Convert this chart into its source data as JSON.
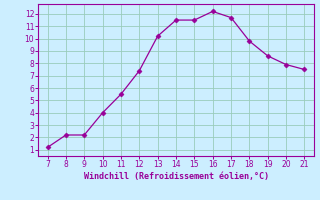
{
  "x": [
    7,
    8,
    9,
    10,
    11,
    12,
    13,
    14,
    15,
    16,
    17,
    18,
    19,
    20,
    21
  ],
  "y": [
    1.2,
    2.2,
    2.2,
    4.0,
    5.5,
    7.4,
    10.2,
    11.5,
    11.5,
    12.2,
    11.7,
    9.8,
    8.6,
    7.9,
    7.5
  ],
  "line_color": "#990099",
  "marker": "D",
  "marker_size": 2.5,
  "bg_color": "#cceeff",
  "grid_color": "#99ccbb",
  "xlabel": "Windchill (Refroidissement éolien,°C)",
  "xlabel_color": "#990099",
  "tick_color": "#990099",
  "spine_color": "#990099",
  "xlim": [
    6.5,
    21.5
  ],
  "ylim": [
    0.5,
    12.8
  ],
  "xticks": [
    7,
    8,
    9,
    10,
    11,
    12,
    13,
    14,
    15,
    16,
    17,
    18,
    19,
    20,
    21
  ],
  "yticks": [
    1,
    2,
    3,
    4,
    5,
    6,
    7,
    8,
    9,
    10,
    11,
    12
  ]
}
